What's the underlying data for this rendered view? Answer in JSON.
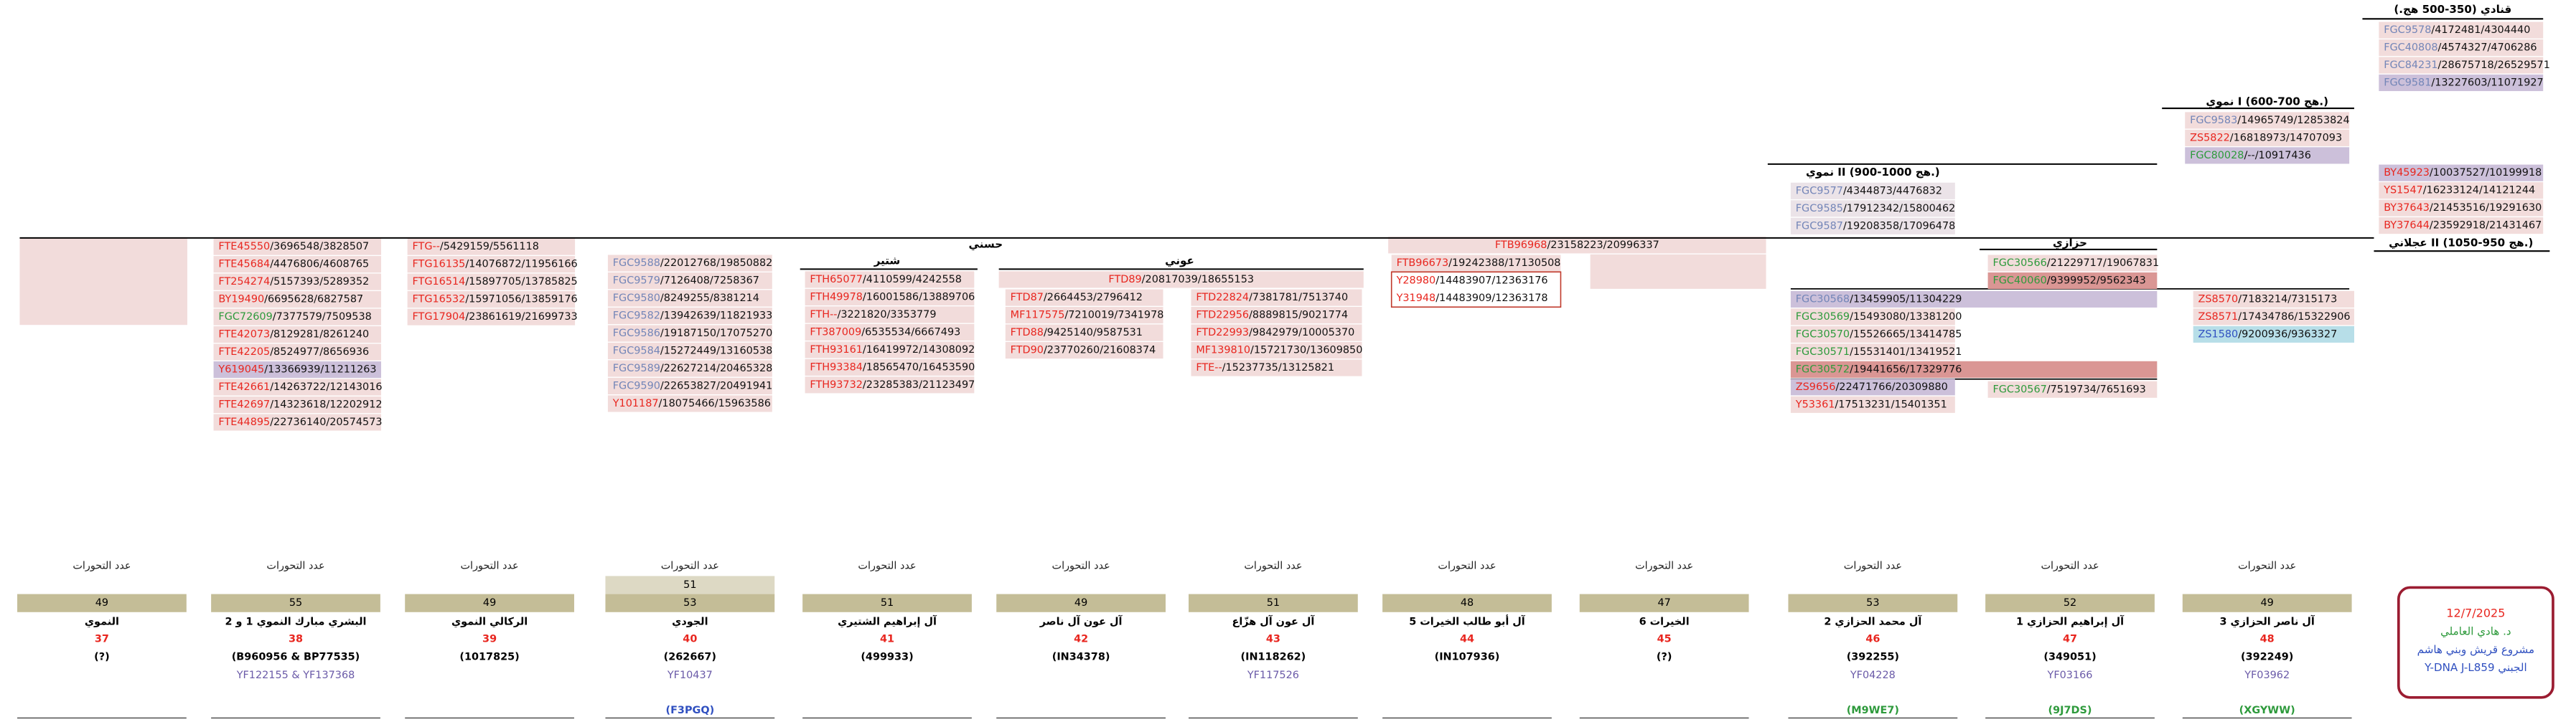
{
  "groups": [
    {
      "title": "قنادي (350-500 هج.)",
      "color": "#7486b8",
      "bg": "#f2dcdb",
      "rows": [
        {
          "snp": "FGC9578",
          "pos": "/4172481/4304440"
        },
        {
          "snp": "FGC40808",
          "pos": "/4574327/4706286"
        },
        {
          "snp": "FGC84231",
          "pos": "/28675718/26529571"
        },
        {
          "snp": "FGC9581",
          "pos": "/13227603/11071927",
          "bg": "#ccc0da"
        }
      ]
    },
    {
      "title": "نموي I (600-700 هج.)",
      "color": "#7486b8",
      "bg": "#f2dcdb",
      "rows": [
        {
          "snp": "FGC9583",
          "pos": "/14965749/12853824"
        },
        {
          "snp": "ZS5822",
          "pos": "/16818973/14707093",
          "color": "#e8261f"
        },
        {
          "snp": "FGC80028",
          "pos": "/--/10917436",
          "color": "#2e9a3c",
          "bg": "#ccc0da"
        }
      ]
    },
    {
      "title": "نموي II (900-1000 هج.)",
      "color": "#7486b8",
      "bg": "#ebe3e8",
      "rows": [
        {
          "snp": "FGC9577",
          "pos": "/4344873/4476832"
        },
        {
          "snp": "FGC9585",
          "pos": "/17912342/15800462"
        },
        {
          "snp": "FGC9587",
          "pos": "/19208358/17096478"
        }
      ]
    },
    {
      "title": "عجلاني II (1050-950 هج.)",
      "color": "#e8261f",
      "bg": "#f2dcdb",
      "rows": [
        {
          "snp": "BY45923",
          "pos": "/10037527/10199918",
          "bg": "#ccc0da"
        },
        {
          "snp": "YS1547",
          "pos": "/16233124/14121244"
        },
        {
          "snp": "BY37643",
          "pos": "/21453516/19291630"
        },
        {
          "snp": "BY37644",
          "pos": "/23592918/21431467"
        }
      ]
    },
    {
      "color": "#e8261f",
      "bg": "#f2dcdb",
      "rows": [
        {
          "snp": "FTB96968",
          "pos": "/23158223/20996337"
        }
      ]
    },
    {
      "color": "#e8261f",
      "bg": "#f2dcdb",
      "rows": [
        {
          "snp": "FTE45550",
          "pos": "/3696548/3828507"
        },
        {
          "snp": "FTE45684",
          "pos": "/4476806/4608765"
        },
        {
          "snp": "FT254274",
          "pos": "/5157393/5289352"
        },
        {
          "snp": "BY19490",
          "pos": "/6695628/6827587"
        },
        {
          "snp": "FGC72609",
          "pos": "/7377579/7509538",
          "color": "#2e9a3c"
        },
        {
          "snp": "FTE42073",
          "pos": "/8129281/8261240"
        },
        {
          "snp": "FTE42205",
          "pos": "/8524977/8656936"
        },
        {
          "snp": "Y619045",
          "pos": "/13366939/11211263",
          "bg": "#ccc0da"
        },
        {
          "snp": "FTE42661",
          "pos": "/14263722/12143016"
        },
        {
          "snp": "FTE42697",
          "pos": "/14323618/12202912"
        },
        {
          "snp": "FTE44895",
          "pos": "/22736140/20574573"
        }
      ]
    },
    {
      "color": "#e8261f",
      "bg": "#f2dcdb",
      "rows": [
        {
          "snp": "FTG--",
          "pos": "/5429159/5561118"
        },
        {
          "snp": "FTG16135",
          "pos": "/14076872/11956166"
        },
        {
          "snp": "FTG16514",
          "pos": "/15897705/13785825"
        },
        {
          "snp": "FTG16532",
          "pos": "/15971056/13859176"
        },
        {
          "snp": "FTG17904",
          "pos": "/23861619/21699733"
        }
      ]
    },
    {
      "color": "#7486b8",
      "bg": "#f2dcdb",
      "rows": [
        {
          "snp": "FGC9588",
          "pos": "/22012768/19850882"
        },
        {
          "snp": "FGC9579",
          "pos": "/7126408/7258367"
        },
        {
          "snp": "FGC9580",
          "pos": "/8249255/8381214"
        },
        {
          "snp": "FGC9582",
          "pos": "/13942639/11821933"
        },
        {
          "snp": "FGC9586",
          "pos": "/19187150/17075270"
        },
        {
          "snp": "FGC9584",
          "pos": "/15272449/13160538"
        },
        {
          "snp": "FGC9589",
          "pos": "/22627214/20465328"
        },
        {
          "snp": "FGC9590",
          "pos": "/22653827/20491941"
        },
        {
          "snp": "Y101187",
          "pos": "/18075466/15963586",
          "color": "#e8261f"
        }
      ]
    },
    {
      "color": "#e8261f",
      "bg": "#f2dcdb",
      "rows": [
        {
          "snp": "FTH65077",
          "pos": "/4110599/4242558"
        },
        {
          "snp": "FTH49978",
          "pos": "/16001586/13889706"
        },
        {
          "snp": "FTH--",
          "pos": "/3221820/3353779"
        },
        {
          "snp": "FT387009",
          "pos": "/6535534/6667493"
        },
        {
          "snp": "FTH93161",
          "pos": "/16419972/14308092"
        },
        {
          "snp": "FTH93384",
          "pos": "/18565470/16453590"
        },
        {
          "snp": "FTH93732",
          "pos": "/23285383/21123497"
        }
      ]
    },
    {
      "color": "#e8261f",
      "bg": "#f2dcdb",
      "rows": [
        {
          "snp": "FTD89",
          "pos": "/20817039/18655153"
        }
      ]
    },
    {
      "color": "#e8261f",
      "bg": "#f2dcdb",
      "rows": [
        {
          "snp": "FTD87",
          "pos": "/2664453/2796412"
        },
        {
          "snp": "MF117575",
          "pos": "/7210019/7341978"
        },
        {
          "snp": "FTD88",
          "pos": "/9425140/9587531"
        },
        {
          "snp": "FTD90",
          "pos": "/23770260/21608374"
        }
      ]
    },
    {
      "color": "#e8261f",
      "bg": "#f2dcdb",
      "rows": [
        {
          "snp": "FTD22824",
          "pos": "/7381781/7513740"
        },
        {
          "snp": "FTD22956",
          "pos": "/8889815/9021774"
        },
        {
          "snp": "FTD22993",
          "pos": "/9842979/10005370"
        },
        {
          "snp": "MF139810",
          "pos": "/15721730/13609850"
        },
        {
          "snp": "FTE--",
          "pos": "/15237735/13125821"
        }
      ]
    },
    {
      "color": "#e8261f",
      "bg": "#f2dcdb",
      "rows": [
        {
          "snp": "FTB96673",
          "pos": "/19242388/17130508"
        },
        {
          "snp": "Y28980",
          "pos": "/14483907/12363176",
          "bg": "#ffffff"
        },
        {
          "snp": "Y31948",
          "pos": "/14483909/12363178",
          "bg": "#ffffff"
        }
      ]
    },
    {
      "color": "#2e9a3c",
      "bg": "#f2dcdb",
      "rows": [
        {
          "snp": "FGC30568",
          "pos": "/13459905/11304229",
          "color": "#7486b8",
          "bg": "#ccc0da"
        },
        {
          "snp": "FGC30569",
          "pos": "/15493080/13381200"
        },
        {
          "snp": "FGC30570",
          "pos": "/15526665/13414785"
        },
        {
          "snp": "FGC30571",
          "pos": "/15531401/13419521"
        },
        {
          "snp": "FGC30572",
          "pos": "/19441656/17329776",
          "bg": "#da9694"
        },
        {
          "snp": "ZS9656",
          "pos": "/22471766/20309880",
          "color": "#e8261f",
          "bg": "#ccc0da"
        },
        {
          "snp": "Y53361",
          "pos": "/17513231/15401351",
          "color": "#e8261f"
        }
      ]
    },
    {
      "color": "#2e9a3c",
      "bg": "#f2dcdb",
      "rows": [
        {
          "snp": "FGC30566",
          "pos": "/21229717/19067831"
        },
        {
          "snp": "FGC40060",
          "pos": "/9399952/9562343",
          "bg": "#da9694"
        }
      ]
    },
    {
      "color": "#2e9a3c",
      "bg": "#f2dcdb",
      "rows": [
        {
          "snp": "FGC30567",
          "pos": "/7519734/7651693"
        }
      ]
    },
    {
      "color": "#e8261f",
      "bg": "#f2dcdb",
      "rows": [
        {
          "snp": "ZS8570",
          "pos": "/7183214/7315173"
        },
        {
          "snp": "ZS8571",
          "pos": "/17434786/15322906"
        },
        {
          "snp": "ZS1580",
          "pos": "/9200936/9363327",
          "color": "#3050c0",
          "bg": "#b7dee8"
        }
      ]
    }
  ],
  "branches": [
    "حسني",
    "شتير",
    "عوني",
    "حزازي"
  ],
  "columns": [
    {
      "count_label": "عدد التحورات",
      "count": 49,
      "name": "النموي",
      "number": 37,
      "code": "(?)"
    },
    {
      "count_label": "عدد التحورات",
      "count": 55,
      "name": "البشري مبارك النموي 1 و 2",
      "number": 38,
      "code": "(B960956 & BP77535)",
      "code2": "YF122155 & YF137368"
    },
    {
      "count_label": "عدد التحورات",
      "count": 49,
      "name": "الركالي النموي",
      "number": 39,
      "code": "(1017825)"
    },
    {
      "count_label": "عدد التحورات",
      "extra_count": 51,
      "count": 53,
      "name": "الجودي",
      "number": 40,
      "code": "(262667)",
      "code2": "YF10437",
      "tag": "(F3PGQ)",
      "tag_color": "#3050c0"
    },
    {
      "count_label": "عدد التحورات",
      "count": 51,
      "name": "آل إبراهيم الشتيري",
      "number": 41,
      "code": "(499933)"
    },
    {
      "count_label": "عدد التحورات",
      "count": 49,
      "name": "آل عون آل ناصر",
      "number": 42,
      "code": "(IN34378)"
    },
    {
      "count_label": "عدد التحورات",
      "count": 51,
      "name": "آل عون آل هزّاع",
      "number": 43,
      "code": "(IN118262)",
      "code2": "YF117526"
    },
    {
      "count_label": "عدد التحورات",
      "count": 48,
      "name": "آل أبو طالب الخيرات 5",
      "number": 44,
      "code": "(IN107936)"
    },
    {
      "count_label": "عدد التحورات",
      "count": 47,
      "name": "الخيرات 6",
      "number": 45,
      "code": "(?)"
    },
    {
      "count_label": "عدد التحورات",
      "count": 53,
      "name": "آل محمد الحزازي 2",
      "number": 46,
      "code": "(392255)",
      "code2": "YF04228",
      "tag": "(M9WE7)",
      "tag_color": "#2e9a3c"
    },
    {
      "count_label": "عدد التحورات",
      "count": 52,
      "name": "آل إبراهيم الحزازي 1",
      "number": 47,
      "code": "(349051)",
      "code2": "YF03166",
      "tag": "(9J7DS)",
      "tag_color": "#2e9a3c"
    },
    {
      "count_label": "عدد التحورات",
      "count": 49,
      "name": "آل ناصر الحزازي 3",
      "number": 48,
      "code": "(392249)",
      "code2": "YF03962",
      "tag": "(XGYWW)",
      "tag_color": "#2e9a3c"
    }
  ],
  "stamp": {
    "date": "12/7/2025",
    "author": "د. هادي العاملي",
    "project": "مشروع قريش وبني هاشم",
    "label": "Y-DNA J-L859 الجبني"
  }
}
